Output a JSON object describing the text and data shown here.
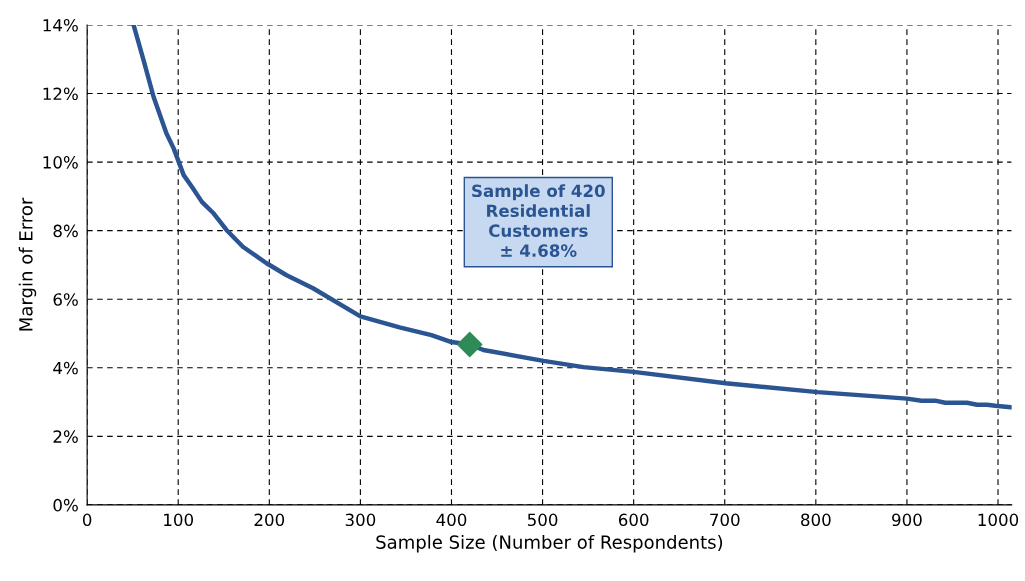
{
  "chart_data": {
    "type": "line",
    "xlabel": "Sample Size (Number of Respondents)",
    "ylabel": "Margin of Error",
    "series": [
      {
        "color": "#2b5592",
        "x": [
          51,
          62,
          73,
          87,
          95,
          106,
          115,
          126,
          139,
          153,
          171,
          197,
          219,
          248,
          300,
          343,
          378,
          400,
          420,
          435,
          501,
          545,
          600,
          701,
          802,
          900,
          916,
          931,
          942,
          966,
          977,
          988,
          997,
          1014
        ],
        "values": [
          14.0,
          12.97,
          11.9,
          10.84,
          10.4,
          9.62,
          9.28,
          8.84,
          8.5,
          8.02,
          7.53,
          7.05,
          6.7,
          6.32,
          5.5,
          5.18,
          4.95,
          4.75,
          4.68,
          4.52,
          4.2,
          4.02,
          3.88,
          3.55,
          3.29,
          3.1,
          3.04,
          3.04,
          2.98,
          2.98,
          2.92,
          2.92,
          2.89,
          2.85
        ]
      },
      {
        "type": "scatter",
        "color": "#2e8b57",
        "marker": "diamond",
        "x": [
          420
        ],
        "values": [
          4.68
        ]
      }
    ],
    "annotations": [
      "Sample of 420\nResidential\nCustomers\n± 4.68%"
    ],
    "xlim": [
      0,
      1015
    ],
    "xticks": [
      0,
      100,
      200,
      300,
      400,
      500,
      600,
      700,
      800,
      900,
      1000
    ],
    "ylim": [
      0,
      14
    ],
    "yticks": [
      {
        "value": 0,
        "label": "0%"
      },
      {
        "value": 2,
        "label": "2%"
      },
      {
        "value": 4,
        "label": "4%"
      },
      {
        "value": 6,
        "label": "6%"
      },
      {
        "value": 8,
        "label": "8%"
      },
      {
        "value": 10,
        "label": "10%"
      },
      {
        "value": 12,
        "label": "12%"
      },
      {
        "value": 14,
        "label": "14%"
      }
    ],
    "grid": true
  }
}
